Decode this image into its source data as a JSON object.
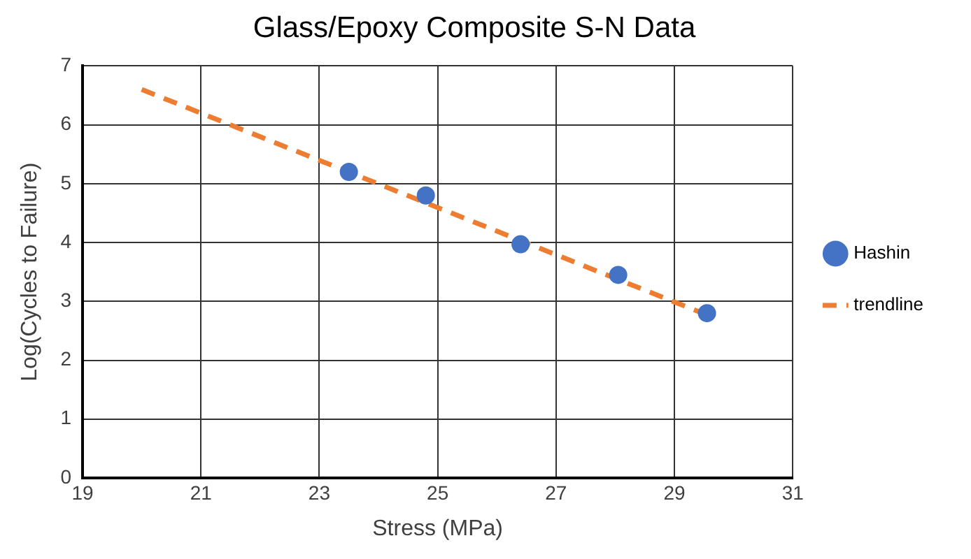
{
  "chart_data": {
    "type": "scatter",
    "title": "Glass/Epoxy Composite S-N Data",
    "xlabel": "Stress (MPa)",
    "ylabel": "Log(Cycles to Failure)",
    "xlim": [
      19,
      31
    ],
    "xticks": [
      19,
      21,
      23,
      25,
      27,
      29,
      31
    ],
    "ylim": [
      0,
      7
    ],
    "yticks": [
      0,
      1,
      2,
      3,
      4,
      5,
      6,
      7
    ],
    "grid": true,
    "legend": "right",
    "marker": "circle",
    "series": [
      {
        "name": "Hashin",
        "color": "#4472c4",
        "x": [
          23.5,
          24.8,
          26.4,
          28.05,
          29.55
        ],
        "values": [
          5.2,
          4.8,
          3.97,
          3.45,
          2.8
        ]
      },
      {
        "name": "trendline",
        "type": "line",
        "color": "#ed7d31",
        "line_style": "dashed",
        "marker": "none",
        "x": [
          20,
          29.6
        ],
        "values": [
          6.6,
          2.75
        ]
      }
    ]
  }
}
